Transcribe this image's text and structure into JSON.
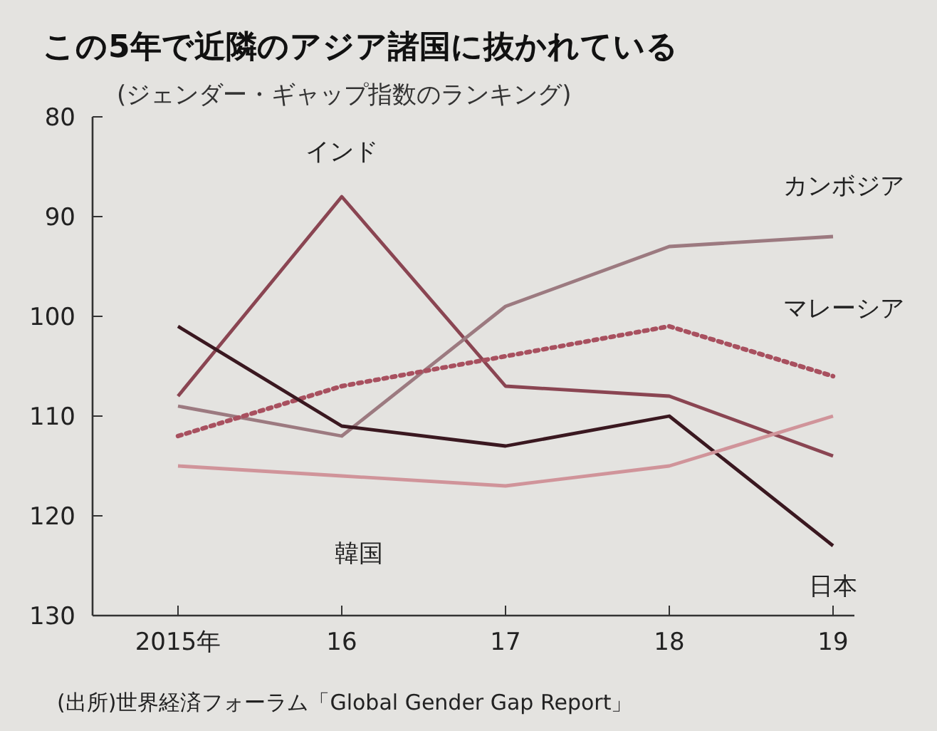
{
  "chart_data": {
    "type": "line",
    "title": "この5年で近隣のアジア諸国に抜かれている",
    "subtitle": "(ジェンダー・ギャップ指数のランキング)",
    "categories": [
      "2015年",
      "16",
      "17",
      "18",
      "19"
    ],
    "ylim": [
      130,
      80
    ],
    "yticks": [
      80,
      90,
      100,
      110,
      120,
      130
    ],
    "series": [
      {
        "name": "インド",
        "color": "#8a4552",
        "values": [
          108,
          88,
          107,
          108,
          114
        ]
      },
      {
        "name": "カンボジア",
        "color": "#9c7a80",
        "values": [
          109,
          112,
          99,
          93,
          92
        ]
      },
      {
        "name": "マレーシア",
        "color": "#a8505f",
        "line_style": "dotted",
        "values": [
          112,
          107,
          104,
          101,
          106
        ]
      },
      {
        "name": "日本",
        "color": "#3a1820",
        "values": [
          101,
          111,
          113,
          110,
          123
        ]
      },
      {
        "name": "韓国",
        "color": "#d0949a",
        "values": [
          115,
          116,
          117,
          115,
          110
        ]
      }
    ],
    "annotations": [
      "(出所)世界経済フォーラム「Global Gender Gap Report」"
    ]
  }
}
